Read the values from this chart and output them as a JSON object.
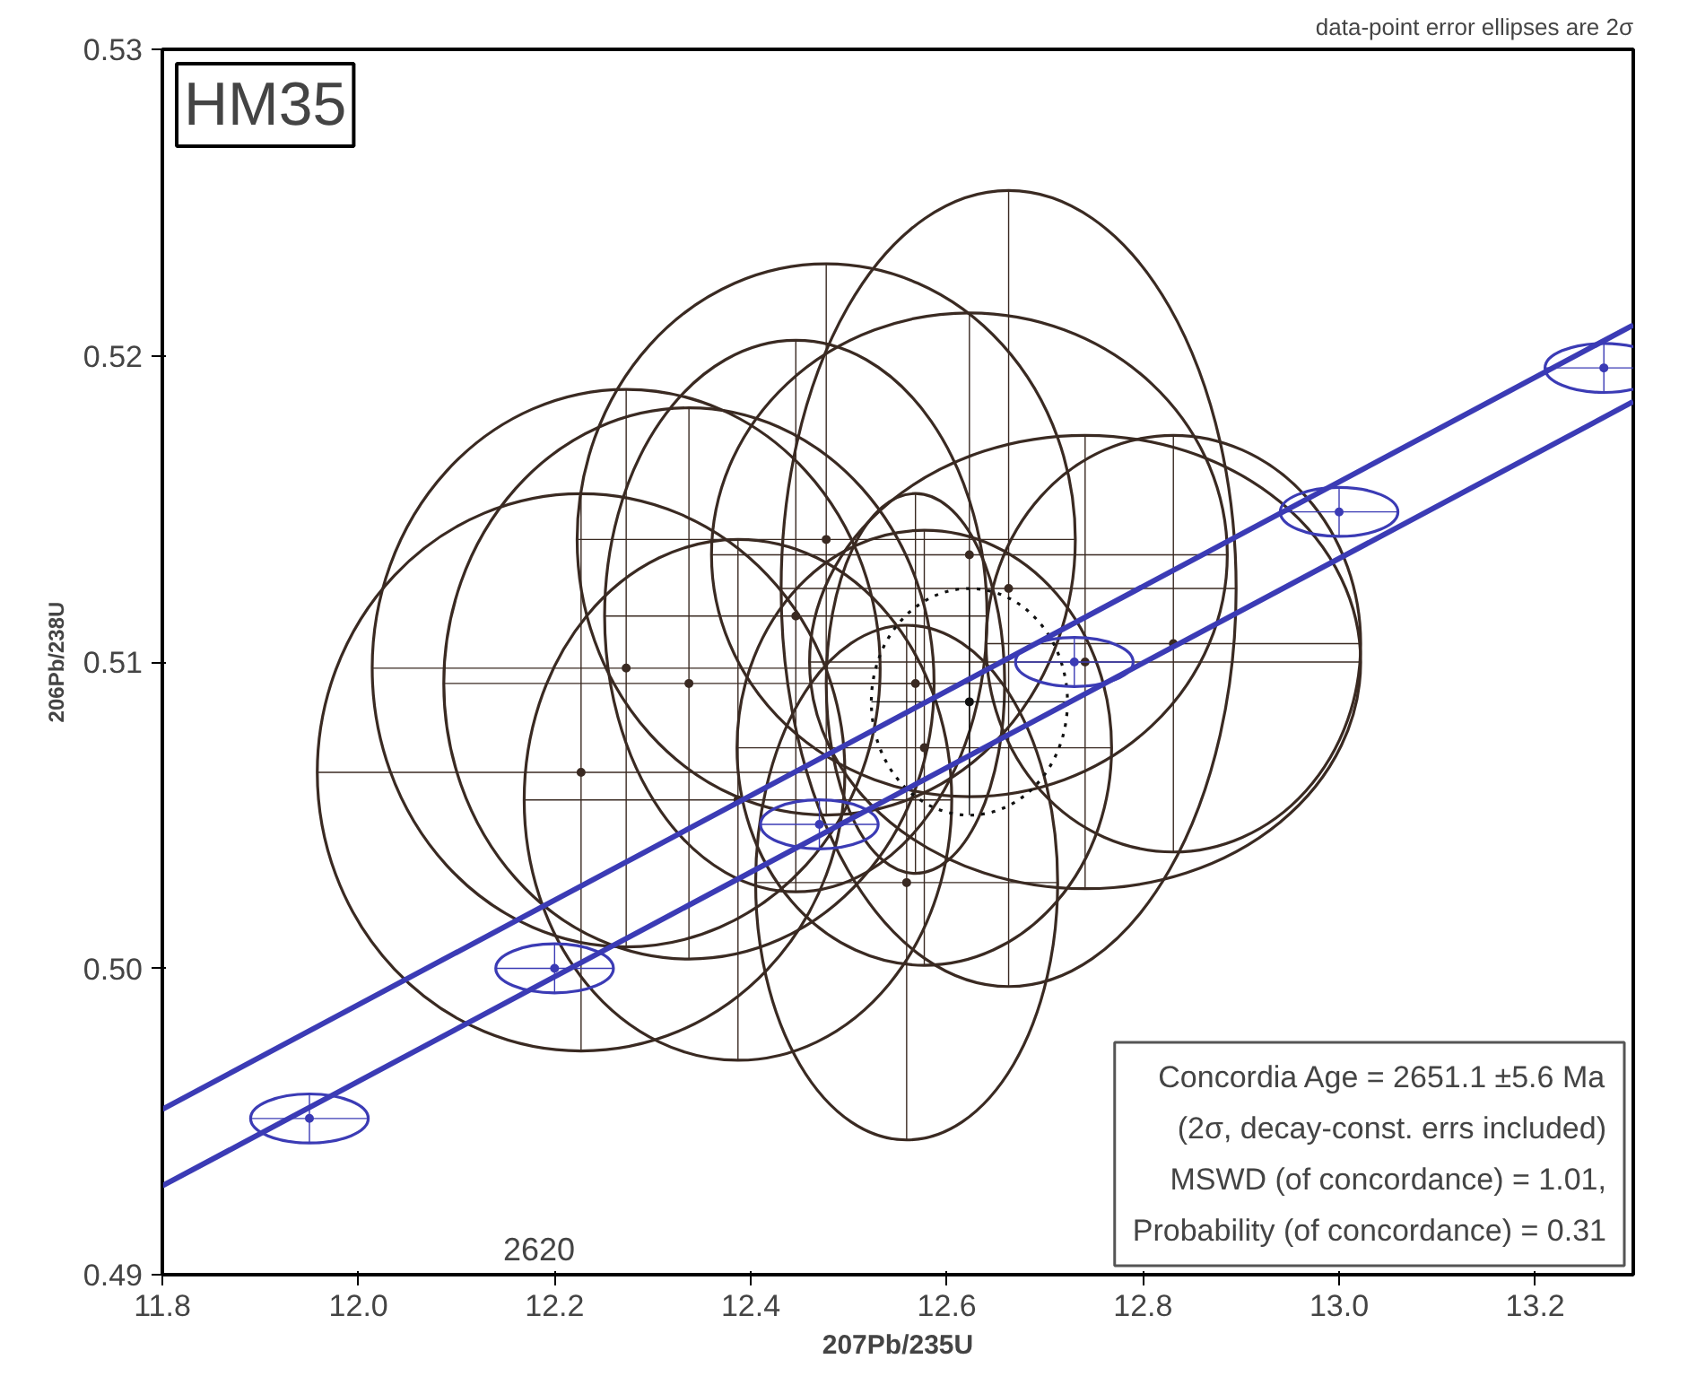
{
  "chart_data": {
    "type": "scatter",
    "title": "HM35",
    "xlabel": "207Pb/235U",
    "ylabel": "206Pb/238U",
    "xlim": [
      11.8,
      13.3
    ],
    "ylim": [
      0.49,
      0.53
    ],
    "xticks": [
      11.8,
      {
        "value": 12.0,
        "label": "12.0"
      },
      12.2,
      12.4,
      12.6,
      12.8,
      {
        "value": 13.0,
        "label": "13.0"
      },
      13.2
    ],
    "yticks": [
      0.49,
      {
        "value": 0.5,
        "label": "0.50"
      },
      0.51,
      0.52,
      0.53
    ],
    "grid": false,
    "series": [
      {
        "color": "#3a2a22",
        "line_style": "solid",
        "x": [
          12.227,
          12.273,
          12.337,
          12.387,
          12.446,
          12.477,
          12.663,
          12.623,
          12.741,
          12.831,
          12.559,
          12.577,
          12.568
        ],
        "values": [
          0.5064,
          0.5098,
          0.5093,
          0.5055,
          0.5115,
          0.514,
          0.5124,
          0.5135,
          0.51,
          0.5106,
          0.5028,
          0.5072,
          0.5093
        ],
        "xerrors": [
          0.269,
          0.259,
          0.25,
          0.218,
          0.195,
          0.254,
          0.232,
          0.263,
          0.281,
          0.191,
          0.154,
          0.191,
          0.091
        ],
        "errors": [
          0.0091,
          0.0091,
          0.009,
          0.0085,
          0.009,
          0.009,
          0.013,
          0.0079,
          0.0074,
          0.0068,
          0.0084,
          0.0071,
          0.0062
        ]
      },
      {
        "color": "#111111",
        "line_style": "dotted",
        "x": [
          12.623
        ],
        "values": [
          0.5087
        ],
        "xerrors": [
          0.1
        ],
        "errors": [
          0.0037
        ]
      },
      {
        "type": "line",
        "color": "#3b3bb5",
        "line_style": "solid",
        "x": [
          11.8,
          13.3
        ],
        "values": [
          0.4954,
          0.521
        ]
      },
      {
        "type": "line",
        "color": "#3b3bb5",
        "line_style": "solid",
        "x": [
          11.8,
          13.3
        ],
        "values": [
          0.4929,
          0.5185
        ]
      },
      {
        "color": "#3b3bb5",
        "line_style": "solid",
        "x": [
          11.95,
          12.2,
          12.47,
          12.73,
          13.0,
          13.27
        ],
        "values": [
          0.4951,
          0.5,
          0.5047,
          0.51,
          0.5149,
          0.5196
        ],
        "xerrors": [
          0.06,
          0.06,
          0.06,
          0.06,
          0.06,
          0.06
        ],
        "errors": [
          0.0008,
          0.0008,
          0.0008,
          0.0008,
          0.0008,
          0.0008
        ]
      }
    ],
    "annotations": [
      "2620",
      "data-point error ellipses are 2σ",
      "Concordia Age = 2651.1 ±5.6 Ma\n(2σ, decay-const. errs included)\nMSWD (of concordance) = 1.01,\nProbability (of concordance) = 0.31"
    ]
  }
}
